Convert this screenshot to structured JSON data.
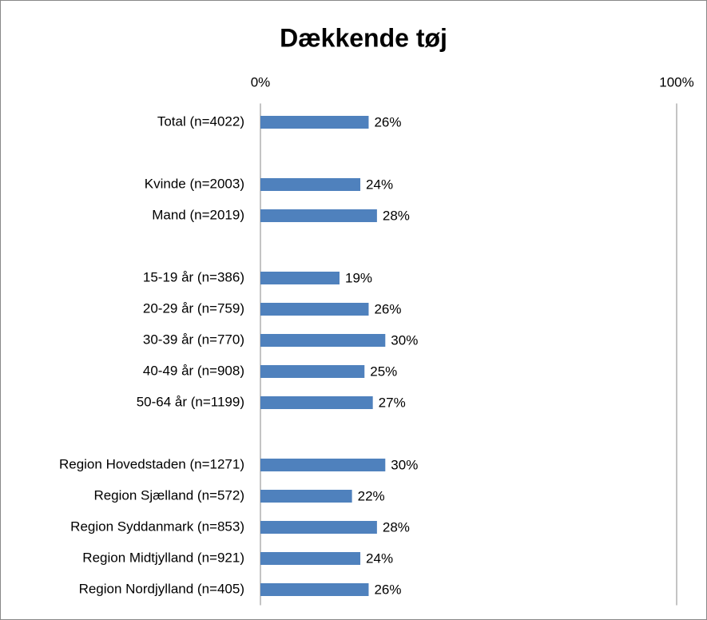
{
  "chart_data": {
    "type": "hbar",
    "title": "Dækkende tøj",
    "categories": [
      "Total (n=4022)",
      null,
      "Kvinde (n=2003)",
      "Mand (n=2019)",
      null,
      "15-19 år (n=386)",
      "20-29 år (n=759)",
      "30-39 år (n=770)",
      "40-49 år (n=908)",
      "50-64 år (n=1199)",
      null,
      "Region Hovedstaden (n=1271)",
      "Region Sjælland (n=572)",
      "Region Syddanmark (n=853)",
      "Region Midtjylland (n=921)",
      "Region Nordjylland (n=405)"
    ],
    "values": [
      26,
      null,
      24,
      28,
      null,
      19,
      26,
      30,
      25,
      27,
      null,
      30,
      22,
      28,
      24,
      26
    ],
    "value_labels": [
      "26%",
      null,
      "24%",
      "28%",
      null,
      "19%",
      "26%",
      "30%",
      "25%",
      "27%",
      null,
      "30%",
      "22%",
      "28%",
      "24%",
      "26%"
    ],
    "color": "#4f81bd",
    "xlim": [
      0,
      100
    ],
    "xticks": [
      {
        "value": 0,
        "label": "0%"
      },
      {
        "value": 100,
        "label": "100%"
      }
    ]
  }
}
